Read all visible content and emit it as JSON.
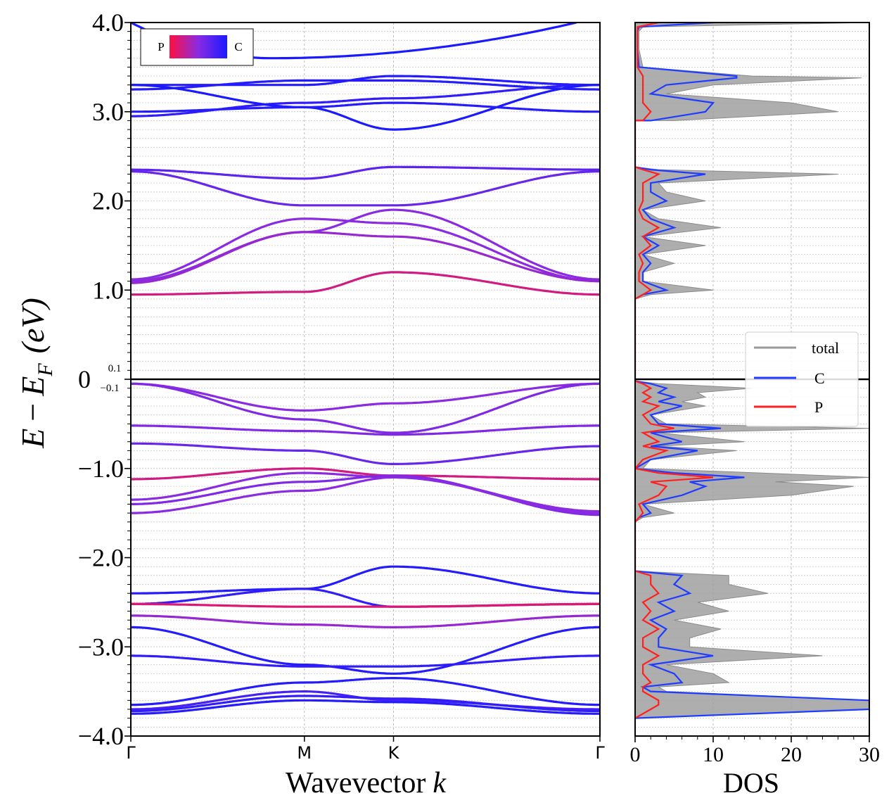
{
  "chart_data": [
    {
      "type": "line",
      "title": "",
      "xlabel_text": "Wavevector",
      "xlabel_var": "k",
      "ylabel": "E − E_F (eV)",
      "ylabel_parts": {
        "E": "E",
        "minus": "−",
        "EF": "E",
        "F": "F",
        "unit": "(eV)"
      },
      "ylim": [
        -4.0,
        4.0
      ],
      "xlim": [
        0,
        1
      ],
      "x_ticks": [
        {
          "pos": 0.0,
          "label": "Γ"
        },
        {
          "pos": 0.37,
          "label": "M"
        },
        {
          "pos": 0.56,
          "label": "K"
        },
        {
          "pos": 1.0,
          "label": "Γ"
        }
      ],
      "y_ticks": [
        {
          "value": 4.0,
          "label": "4.0"
        },
        {
          "value": 3.0,
          "label": "3.0"
        },
        {
          "value": 2.0,
          "label": "2.0"
        },
        {
          "value": 1.0,
          "label": "1.0"
        },
        {
          "value": 0.0,
          "label": "0"
        },
        {
          "value": -1.0,
          "label": "−1.0"
        },
        {
          "value": -2.0,
          "label": "−2.0"
        },
        {
          "value": -3.0,
          "label": "−3.0"
        },
        {
          "value": -4.0,
          "label": "−4.0"
        }
      ],
      "fermi_labels": {
        "upper": "0.1",
        "lower": "−0.1"
      },
      "colorbar": {
        "left_label": "P",
        "right_label": "C",
        "left_color": "#ff1040",
        "mid_color": "#8a2be2",
        "right_color": "#1a1aff"
      },
      "band_knot_x": [
        0,
        0.37,
        0.56,
        1.0
      ],
      "bands": [
        {
          "knots": [
            2.95,
            3.1,
            3.15,
            3.3
          ],
          "p": 0.1
        },
        {
          "knots": [
            3.25,
            3.35,
            3.35,
            3.25
          ],
          "p": 0.05
        },
        {
          "knots": [
            3.3,
            3.3,
            3.4,
            3.3
          ],
          "p": 0.05
        },
        {
          "knots": [
            3.3,
            3.05,
            2.8,
            3.3
          ],
          "p": 0.0
        },
        {
          "knots": [
            3.0,
            3.05,
            3.1,
            3.0
          ],
          "p": 0.05
        },
        {
          "knots": [
            2.35,
            2.25,
            2.38,
            2.35
          ],
          "p": 0.3
        },
        {
          "knots": [
            2.33,
            1.95,
            1.95,
            2.33
          ],
          "p": 0.35
        },
        {
          "knots": [
            1.12,
            1.8,
            1.75,
            1.1
          ],
          "p": 0.5
        },
        {
          "knots": [
            1.1,
            1.65,
            1.9,
            1.12
          ],
          "p": 0.5
        },
        {
          "knots": [
            1.08,
            1.65,
            1.6,
            1.1
          ],
          "p": 0.55
        },
        {
          "knots": [
            0.95,
            0.98,
            1.2,
            0.95
          ],
          "p": 0.8
        },
        {
          "knots": [
            -0.05,
            -0.35,
            -0.27,
            -0.05
          ],
          "p": 0.5
        },
        {
          "knots": [
            -0.05,
            -0.45,
            -0.6,
            -0.05
          ],
          "p": 0.45
        },
        {
          "knots": [
            -0.52,
            -0.58,
            -0.62,
            -0.52
          ],
          "p": 0.45
        },
        {
          "knots": [
            -0.72,
            -0.8,
            -0.95,
            -0.75
          ],
          "p": 0.35
        },
        {
          "knots": [
            -1.12,
            -1.0,
            -1.08,
            -1.12
          ],
          "p": 0.8
        },
        {
          "knots": [
            -1.35,
            -1.05,
            -1.1,
            -1.48
          ],
          "p": 0.5
        },
        {
          "knots": [
            -1.4,
            -1.15,
            -1.08,
            -1.52
          ],
          "p": 0.45
        },
        {
          "knots": [
            -1.5,
            -1.25,
            -1.1,
            -1.5
          ],
          "p": 0.5
        },
        {
          "knots": [
            -2.4,
            -2.35,
            -2.1,
            -2.4
          ],
          "p": 0.05
        },
        {
          "knots": [
            -2.52,
            -2.35,
            -2.55,
            -2.52
          ],
          "p": 0.1
        },
        {
          "knots": [
            -2.52,
            -2.55,
            -2.55,
            -2.52
          ],
          "p": 0.85
        },
        {
          "knots": [
            -2.65,
            -2.75,
            -2.78,
            -2.65
          ],
          "p": 0.55
        },
        {
          "knots": [
            -2.78,
            -3.2,
            -3.3,
            -2.78
          ],
          "p": 0.05
        },
        {
          "knots": [
            -3.1,
            -3.22,
            -3.22,
            -3.1
          ],
          "p": 0.1
        },
        {
          "knots": [
            -3.65,
            -3.4,
            -3.35,
            -3.65
          ],
          "p": 0.05
        },
        {
          "knots": [
            -3.7,
            -3.5,
            -3.6,
            -3.7
          ],
          "p": 0.2
        },
        {
          "knots": [
            -3.75,
            -3.6,
            -3.62,
            -3.75
          ],
          "p": 0.05
        },
        {
          "knots": [
            -3.72,
            -3.55,
            -3.58,
            -3.72
          ],
          "p": 0.1
        }
      ],
      "parabola_band": {
        "x_start": 0.0,
        "e_start": 4.0,
        "x_min": 0.3,
        "e_min": 3.6,
        "x_end": 0.95,
        "e_end": 4.0,
        "p": 0.0
      }
    },
    {
      "type": "area",
      "xlabel": "DOS",
      "xlim": [
        0,
        30
      ],
      "ylim": [
        -4.0,
        4.0
      ],
      "x_ticks": [
        {
          "value": 0,
          "label": "0"
        },
        {
          "value": 10,
          "label": "10"
        },
        {
          "value": 20,
          "label": "20"
        },
        {
          "value": 30,
          "label": "30"
        }
      ],
      "legend": [
        {
          "name": "total",
          "color": "#999999"
        },
        {
          "name": "C",
          "color": "#1f3cff"
        },
        {
          "name": "P",
          "color": "#ff2020"
        }
      ],
      "energies": [
        4.0,
        3.95,
        3.9,
        3.7,
        3.5,
        3.4,
        3.38,
        3.3,
        3.2,
        3.1,
        3.0,
        2.9,
        2.9,
        2.38,
        2.35,
        2.3,
        2.2,
        2.1,
        2.0,
        1.9,
        1.8,
        1.7,
        1.6,
        1.5,
        1.4,
        1.3,
        1.2,
        1.1,
        1.0,
        0.95,
        0.9,
        -0.02,
        -0.05,
        -0.1,
        -0.15,
        -0.2,
        -0.25,
        -0.3,
        -0.4,
        -0.5,
        -0.55,
        -0.6,
        -0.7,
        -0.75,
        -0.8,
        -0.9,
        -1.0,
        -1.05,
        -1.1,
        -1.15,
        -1.2,
        -1.3,
        -1.4,
        -1.5,
        -1.55,
        -1.6,
        -2.15,
        -2.2,
        -2.3,
        -2.4,
        -2.5,
        -2.6,
        -2.7,
        -2.8,
        -2.9,
        -3.0,
        -3.1,
        -3.2,
        -3.3,
        -3.4,
        -3.45,
        -3.5,
        -3.6,
        -3.65,
        -3.7,
        -3.8
      ],
      "total": [
        30,
        1,
        0.5,
        0.5,
        1,
        15,
        29,
        10,
        4,
        20,
        26,
        5,
        0,
        0,
        3,
        26,
        3,
        4,
        9,
        1,
        3,
        11,
        1,
        9,
        1,
        5,
        1,
        1,
        10,
        2,
        0,
        0,
        3,
        15,
        8,
        9,
        6,
        9,
        2,
        4,
        30,
        3,
        14,
        3,
        13,
        2,
        1,
        16,
        30,
        18,
        28,
        20,
        1,
        5,
        1,
        0,
        0,
        12,
        12,
        17,
        8,
        12,
        5,
        11,
        7,
        7,
        24,
        4,
        10,
        12,
        3,
        4,
        30,
        30,
        30,
        0
      ],
      "C": [
        10,
        0.5,
        0.3,
        0.3,
        0.5,
        13,
        13,
        4,
        2,
        10,
        9,
        2,
        0,
        0,
        2,
        9,
        2,
        2,
        4,
        1,
        2,
        5,
        1,
        3,
        1,
        2,
        1,
        1,
        4,
        1,
        0,
        0,
        2,
        4,
        3,
        5,
        3,
        6,
        2,
        3,
        11,
        2,
        6,
        2,
        8,
        2,
        0,
        5,
        14,
        7,
        9,
        6,
        1,
        2,
        0.5,
        0,
        0,
        6,
        5,
        7,
        3,
        5,
        2,
        4,
        3,
        3,
        10,
        2,
        5,
        6,
        1,
        2,
        30,
        30,
        30,
        0
      ],
      "P": [
        3,
        0.3,
        0.3,
        0.3,
        0.3,
        1,
        1,
        1,
        1,
        1,
        2,
        1,
        0,
        0,
        1,
        3,
        1,
        1,
        1,
        0.5,
        1,
        3,
        1,
        2,
        0.5,
        1,
        0.5,
        0.5,
        2,
        1,
        0,
        0,
        1,
        2,
        1,
        2,
        1,
        3,
        1,
        2,
        5,
        1,
        3,
        1,
        4,
        1,
        0,
        3,
        10,
        2,
        4,
        3,
        0.5,
        1,
        0.5,
        0,
        0,
        2,
        2,
        3,
        1,
        2,
        1,
        3,
        1,
        1,
        3,
        1,
        1,
        2,
        1,
        1,
        3,
        3,
        2,
        0
      ]
    }
  ]
}
